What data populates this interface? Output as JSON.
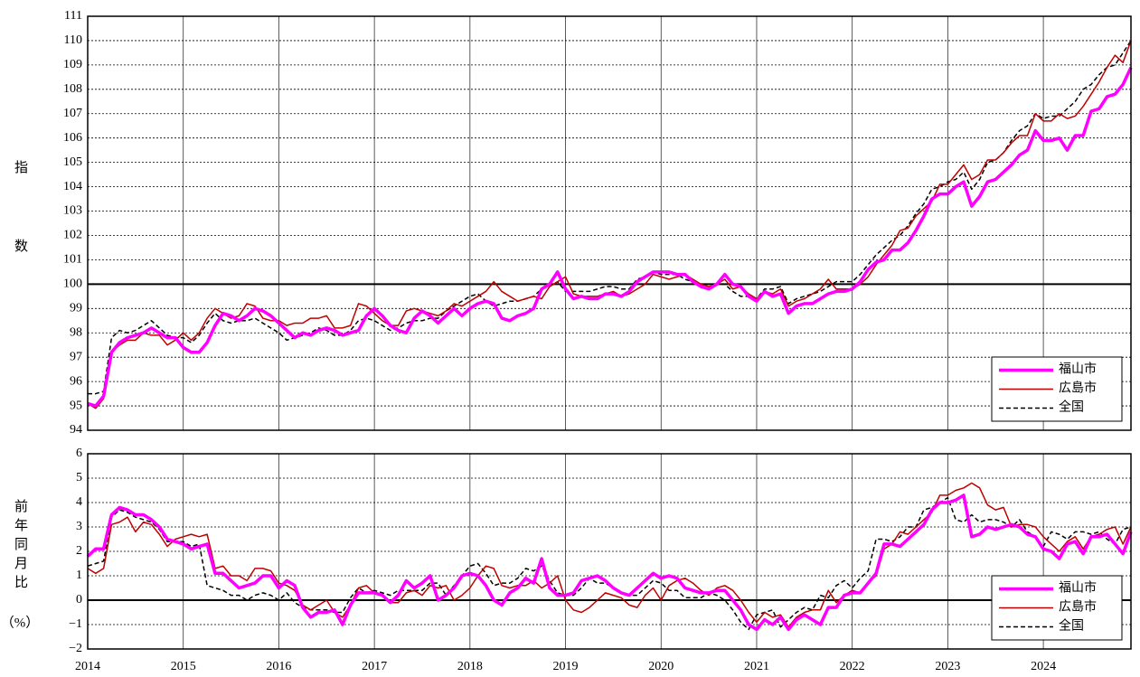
{
  "chart_data": [
    {
      "type": "line",
      "ylabel": "指数",
      "ylim": [
        94,
        111
      ],
      "yticks": [
        94,
        95,
        96,
        97,
        98,
        99,
        100,
        101,
        102,
        103,
        104,
        105,
        106,
        107,
        108,
        109,
        110,
        111
      ],
      "refline": 100,
      "grid": true,
      "legend": "lower right",
      "series": [
        {
          "name": "福山市",
          "color": "#ff00ff",
          "linestyle": "solid",
          "values": [
            95.1,
            95.0,
            95.4,
            97.2,
            97.6,
            97.8,
            97.9,
            98.0,
            98.2,
            98.0,
            97.8,
            97.8,
            97.4,
            97.2,
            97.2,
            97.6,
            98.3,
            98.8,
            98.7,
            98.5,
            98.7,
            99.0,
            98.9,
            98.7,
            98.4,
            98.1,
            97.8,
            98.0,
            97.9,
            98.1,
            98.2,
            98.1,
            97.9,
            98.0,
            98.1,
            98.7,
            99.0,
            98.7,
            98.3,
            98.1,
            98.0,
            98.6,
            98.9,
            98.7,
            98.4,
            98.7,
            99.0,
            98.7,
            99.0,
            99.2,
            99.3,
            99.2,
            98.6,
            98.5,
            98.7,
            98.8,
            99.0,
            99.8,
            100.0,
            100.5,
            99.8,
            99.4,
            99.5,
            99.4,
            99.4,
            99.6,
            99.6,
            99.5,
            99.7,
            100.1,
            100.3,
            100.5,
            100.5,
            100.5,
            100.4,
            100.4,
            100.1,
            99.9,
            99.8,
            100.0,
            100.4,
            100.0,
            99.9,
            99.5,
            99.3,
            99.7,
            99.5,
            99.6,
            98.8,
            99.1,
            99.2,
            99.2,
            99.4,
            99.6,
            99.7,
            99.7,
            99.8,
            100.1,
            100.6,
            100.9,
            101.0,
            101.4,
            101.4,
            101.7,
            102.2,
            102.8,
            103.5,
            103.7,
            103.7,
            104.0,
            104.2,
            103.2,
            103.6,
            104.2,
            104.3,
            104.6,
            104.9,
            105.3,
            105.5,
            106.3,
            105.9,
            105.9,
            106.0,
            105.5,
            106.1,
            106.1,
            107.1,
            107.2,
            107.7,
            107.8,
            108.2,
            108.9
          ]
        },
        {
          "name": "広島市",
          "color": "#c00000",
          "linestyle": "solid",
          "values": [
            95.1,
            94.9,
            95.3,
            97.2,
            97.5,
            97.7,
            97.7,
            98.0,
            97.9,
            97.9,
            97.5,
            97.7,
            98.0,
            97.7,
            98.0,
            98.6,
            99.0,
            98.8,
            98.6,
            98.7,
            99.2,
            99.1,
            98.6,
            98.5,
            98.5,
            98.3,
            98.4,
            98.4,
            98.6,
            98.6,
            98.7,
            98.2,
            98.2,
            98.3,
            99.2,
            99.1,
            98.8,
            98.5,
            98.3,
            98.3,
            98.9,
            99.0,
            98.9,
            98.8,
            98.7,
            98.9,
            99.2,
            99.1,
            99.3,
            99.5,
            99.7,
            100.1,
            99.7,
            99.5,
            99.3,
            99.4,
            99.5,
            99.4,
            99.9,
            100.1,
            100.3,
            99.6,
            99.5,
            99.5,
            99.5,
            99.6,
            99.7,
            99.5,
            99.6,
            99.8,
            100.0,
            100.4,
            100.3,
            100.2,
            100.3,
            100.4,
            100.2,
            100.0,
            99.9,
            100.0,
            100.2,
            99.8,
            99.9,
            99.6,
            99.4,
            99.7,
            99.6,
            99.8,
            99.1,
            99.3,
            99.4,
            99.6,
            99.8,
            100.2,
            99.8,
            99.8,
            99.8,
            100.0,
            100.3,
            100.8,
            101.2,
            101.6,
            102.2,
            102.3,
            102.8,
            103.1,
            103.4,
            104.1,
            104.1,
            104.5,
            104.9,
            104.3,
            104.5,
            105.1,
            105.1,
            105.4,
            105.8,
            106.1,
            106.1,
            107.0,
            106.7,
            106.7,
            107.0,
            106.8,
            106.9,
            107.3,
            107.8,
            108.3,
            108.9,
            109.4,
            109.1,
            110.0
          ]
        },
        {
          "name": "全国",
          "color": "#000000",
          "linestyle": "dashed",
          "values": [
            95.5,
            95.5,
            95.6,
            97.8,
            98.1,
            98.0,
            98.1,
            98.3,
            98.5,
            98.2,
            97.9,
            97.8,
            97.8,
            97.6,
            97.9,
            98.4,
            98.8,
            98.5,
            98.4,
            98.5,
            98.5,
            98.6,
            98.4,
            98.2,
            98.0,
            97.7,
            97.8,
            97.9,
            98.0,
            98.2,
            98.1,
            97.9,
            97.9,
            98.1,
            98.5,
            98.6,
            98.5,
            98.3,
            98.1,
            98.2,
            98.4,
            98.5,
            98.5,
            98.6,
            98.6,
            98.9,
            99.1,
            99.3,
            99.5,
            99.6,
            99.3,
            99.1,
            99.2,
            99.3,
            99.3,
            99.4,
            99.5,
            99.8,
            99.9,
            100.1,
            99.7,
            99.7,
            99.7,
            99.7,
            99.8,
            99.9,
            99.9,
            99.8,
            99.8,
            100.2,
            100.3,
            100.5,
            100.4,
            100.4,
            100.4,
            100.2,
            100.1,
            100.0,
            100.0,
            100.0,
            100.0,
            99.7,
            99.5,
            99.5,
            99.4,
            99.8,
            99.8,
            99.9,
            99.2,
            99.4,
            99.5,
            99.6,
            99.7,
            99.9,
            100.1,
            100.1,
            100.1,
            100.4,
            100.8,
            101.2,
            101.5,
            101.8,
            102.0,
            102.4,
            102.9,
            103.3,
            103.9,
            104.0,
            104.2,
            104.3,
            104.6,
            103.9,
            104.3,
            105.0,
            105.1,
            105.4,
            105.9,
            106.3,
            106.5,
            107.0,
            106.8,
            106.9,
            106.9,
            107.2,
            107.5,
            108.0,
            108.2,
            108.6,
            108.9,
            109.0,
            109.5,
            110.0
          ]
        }
      ]
    },
    {
      "type": "line",
      "ylabel": [
        "前年同月比",
        "（%）"
      ],
      "ylim": [
        -2,
        6
      ],
      "yticks": [
        {
          "value": -2,
          "label": "−2"
        },
        {
          "value": -1,
          "label": "−1"
        },
        0,
        1,
        2,
        3,
        4,
        5,
        6
      ],
      "refline": 0,
      "grid": true,
      "legend": "lower right",
      "categories": [
        "2014",
        null,
        null,
        null,
        null,
        null,
        null,
        null,
        null,
        null,
        null,
        null,
        "2015",
        null,
        null,
        null,
        null,
        null,
        null,
        null,
        null,
        null,
        null,
        null,
        "2016",
        null,
        null,
        null,
        null,
        null,
        null,
        null,
        null,
        null,
        null,
        null,
        "2017",
        null,
        null,
        null,
        null,
        null,
        null,
        null,
        null,
        null,
        null,
        null,
        "2018",
        null,
        null,
        null,
        null,
        null,
        null,
        null,
        null,
        null,
        null,
        null,
        "2019",
        null,
        null,
        null,
        null,
        null,
        null,
        null,
        null,
        null,
        null,
        null,
        "2020",
        null,
        null,
        null,
        null,
        null,
        null,
        null,
        null,
        null,
        null,
        null,
        "2021",
        null,
        null,
        null,
        null,
        null,
        null,
        null,
        null,
        null,
        null,
        null,
        "2022",
        null,
        null,
        null,
        null,
        null,
        null,
        null,
        null,
        null,
        null,
        null,
        "2023",
        null,
        null,
        null,
        null,
        null,
        null,
        null,
        null,
        null,
        null,
        null,
        "2024",
        null,
        null,
        null,
        null,
        null,
        null,
        null,
        null,
        null,
        null,
        null
      ],
      "series": [
        {
          "name": "福山市",
          "color": "#ff00ff",
          "linestyle": "solid",
          "values": [
            1.8,
            2.1,
            2.1,
            3.5,
            3.8,
            3.7,
            3.5,
            3.5,
            3.3,
            3.0,
            2.5,
            2.4,
            2.3,
            2.1,
            2.2,
            2.3,
            1.1,
            1.1,
            0.8,
            0.5,
            0.6,
            0.7,
            1.0,
            1.0,
            0.5,
            0.8,
            0.6,
            -0.3,
            -0.7,
            -0.5,
            -0.5,
            -0.4,
            -1.0,
            -0.2,
            0.3,
            0.3,
            0.3,
            0.2,
            -0.1,
            0.2,
            0.8,
            0.5,
            0.7,
            1.0,
            0.0,
            0.2,
            0.5,
            1.0,
            1.1,
            1.0,
            0.6,
            0.0,
            -0.2,
            0.3,
            0.5,
            0.9,
            0.7,
            1.7,
            0.5,
            0.2,
            0.2,
            0.3,
            0.8,
            0.9,
            1.0,
            0.8,
            0.5,
            0.3,
            0.2,
            0.5,
            0.8,
            1.1,
            0.9,
            1.0,
            0.9,
            0.5,
            0.4,
            0.3,
            0.3,
            0.4,
            0.4,
            0.0,
            -0.4,
            -1.0,
            -1.2,
            -0.8,
            -1.0,
            -0.7,
            -1.2,
            -0.8,
            -0.6,
            -0.8,
            -1.0,
            -0.3,
            -0.3,
            0.2,
            0.3,
            0.3,
            0.7,
            1.1,
            2.3,
            2.3,
            2.2,
            2.5,
            2.8,
            3.1,
            3.7,
            4.0,
            4.0,
            4.1,
            4.3,
            2.6,
            2.7,
            3.0,
            2.9,
            3.0,
            3.1,
            3.0,
            2.7,
            2.6,
            2.1,
            2.0,
            1.7,
            2.3,
            2.4,
            1.9,
            2.6,
            2.6,
            2.7,
            2.3,
            1.9,
            2.8
          ]
        },
        {
          "name": "広島市",
          "color": "#c00000",
          "linestyle": "solid",
          "values": [
            1.3,
            1.1,
            1.3,
            3.1,
            3.2,
            3.4,
            2.8,
            3.2,
            3.1,
            2.7,
            2.2,
            2.5,
            2.6,
            2.7,
            2.6,
            2.7,
            1.3,
            1.4,
            1.0,
            1.0,
            0.8,
            1.3,
            1.3,
            1.2,
            0.7,
            0.6,
            0.4,
            -0.2,
            -0.4,
            -0.2,
            0.0,
            -0.5,
            -0.7,
            -0.2,
            0.5,
            0.6,
            0.3,
            0.2,
            -0.1,
            -0.1,
            0.3,
            0.4,
            0.2,
            0.6,
            0.5,
            0.6,
            0.0,
            0.2,
            0.5,
            1.0,
            1.4,
            1.3,
            0.6,
            0.5,
            0.6,
            0.6,
            0.8,
            0.5,
            0.7,
            1.0,
            0.0,
            -0.4,
            -0.5,
            -0.3,
            0.0,
            0.3,
            0.2,
            0.1,
            -0.2,
            -0.3,
            0.2,
            0.5,
            0.0,
            0.6,
            0.8,
            0.9,
            0.7,
            0.4,
            0.2,
            0.5,
            0.6,
            0.4,
            0.0,
            -0.5,
            -0.9,
            -0.5,
            -0.7,
            -0.6,
            -1.1,
            -0.7,
            -0.5,
            -0.4,
            -0.4,
            0.4,
            -0.1,
            0.2,
            0.4,
            0.3,
            0.7,
            1.0,
            2.1,
            2.3,
            2.8,
            2.7,
            3.0,
            3.3,
            3.6,
            4.3,
            4.3,
            4.5,
            4.6,
            4.8,
            4.6,
            3.9,
            3.7,
            3.8,
            3.0,
            3.1,
            3.1,
            3.0,
            2.6,
            2.3,
            2.0,
            2.4,
            2.6,
            2.1,
            2.6,
            2.7,
            2.9,
            3.0,
            2.3,
            3.0
          ]
        },
        {
          "name": "全国",
          "color": "#000000",
          "linestyle": "dashed",
          "values": [
            1.4,
            1.5,
            1.6,
            3.4,
            3.7,
            3.6,
            3.4,
            3.3,
            3.2,
            2.9,
            2.4,
            2.4,
            2.4,
            2.2,
            2.3,
            0.6,
            0.5,
            0.4,
            0.2,
            0.2,
            0.0,
            0.2,
            0.3,
            0.2,
            0.0,
            0.3,
            -0.1,
            -0.3,
            -0.4,
            -0.4,
            -0.4,
            -0.5,
            -0.5,
            0.1,
            0.5,
            0.3,
            0.4,
            0.3,
            0.2,
            0.4,
            0.4,
            0.4,
            0.4,
            0.7,
            0.7,
            0.2,
            0.6,
            1.0,
            1.4,
            1.5,
            1.1,
            0.6,
            0.7,
            0.7,
            0.9,
            1.3,
            1.2,
            1.4,
            0.8,
            0.3,
            0.2,
            0.2,
            0.5,
            0.9,
            0.7,
            0.7,
            0.5,
            0.3,
            0.2,
            0.2,
            0.5,
            0.8,
            0.7,
            0.4,
            0.4,
            0.1,
            0.1,
            0.1,
            0.3,
            0.2,
            0.0,
            -0.4,
            -0.9,
            -1.2,
            -0.6,
            -0.5,
            -0.4,
            -1.1,
            -0.8,
            -0.5,
            -0.3,
            -0.4,
            0.2,
            0.1,
            0.6,
            0.8,
            0.5,
            0.9,
            1.2,
            2.5,
            2.5,
            2.4,
            2.6,
            3.0,
            3.0,
            3.7,
            3.8,
            4.0,
            4.2,
            3.3,
            3.2,
            3.5,
            3.2,
            3.3,
            3.3,
            3.2,
            3.0,
            3.3,
            2.8,
            2.6,
            2.2,
            2.8,
            2.7,
            2.5,
            2.8,
            2.8,
            2.7,
            2.8,
            2.5,
            2.3,
            2.9,
            3.0
          ]
        }
      ]
    }
  ]
}
